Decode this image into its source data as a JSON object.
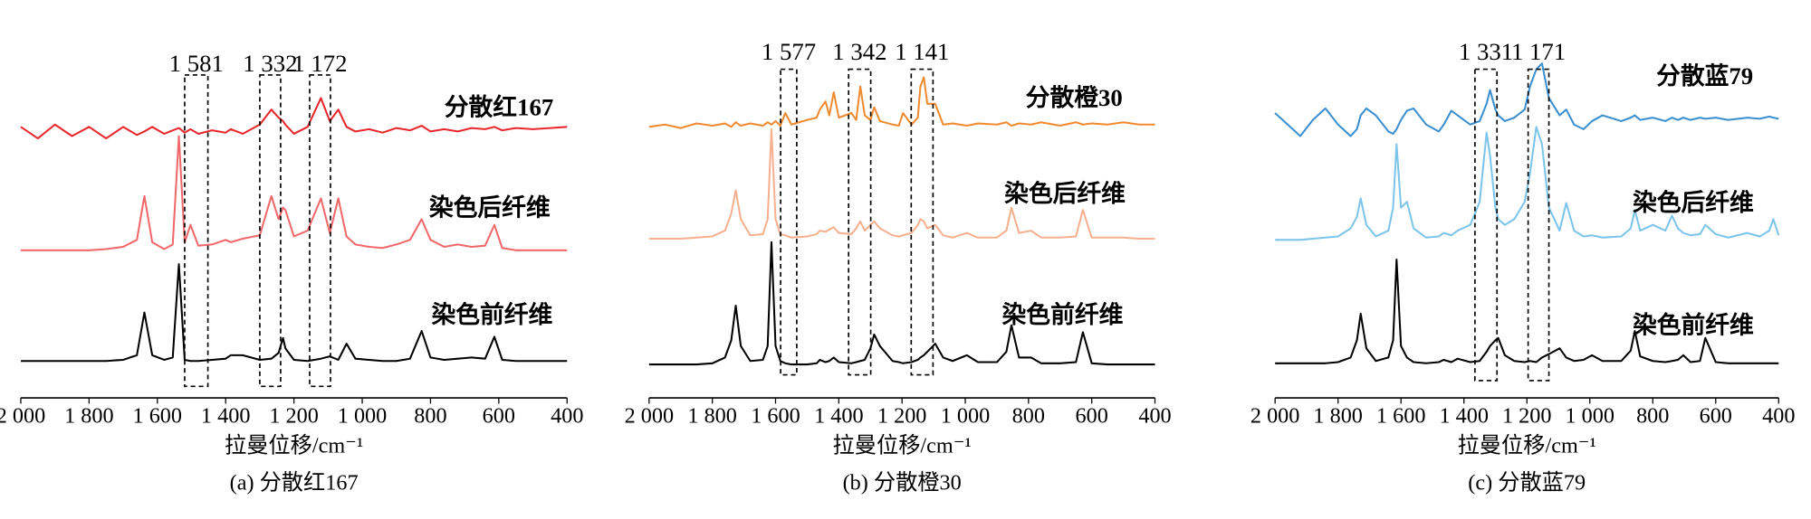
{
  "chart_data": [
    {
      "type": "line",
      "title": "(a) 分散红167",
      "xlabel": "拉曼位移/cm⁻¹",
      "xlim": [
        2000,
        400
      ],
      "ylim": [
        -15,
        250
      ],
      "xticks": [
        {
          "value": 2000,
          "label": "2 000"
        },
        {
          "value": 1800,
          "label": "1 800"
        },
        {
          "value": 1600,
          "label": "1 600"
        },
        {
          "value": 1400,
          "label": "1 400"
        },
        {
          "value": 1200,
          "label": "1 200"
        },
        {
          "value": 1000,
          "label": "1 000"
        },
        800,
        600,
        400
      ],
      "annotations": [
        {
          "label": "1 581",
          "xrange": [
            1520,
            1452
          ]
        },
        {
          "label": "1 332",
          "xrange": [
            1300,
            1239
          ]
        },
        {
          "label": "1 172",
          "xrange": [
            1154,
            1093
          ]
        }
      ],
      "x": [
        2000,
        1950,
        1900,
        1850,
        1800,
        1750,
        1700,
        1660,
        1638,
        1615,
        1580,
        1555,
        1537,
        1520,
        1503,
        1480,
        1440,
        1400,
        1385,
        1350,
        1300,
        1266,
        1245,
        1232,
        1225,
        1200,
        1160,
        1121,
        1095,
        1070,
        1046,
        1020,
        980,
        940,
        900,
        860,
        826,
        800,
        760,
        720,
        680,
        640,
        613,
        590,
        550,
        500,
        450,
        400
      ],
      "series": [
        {
          "name": "分散红167",
          "color": "#e8262b",
          "values": [
            220,
            210,
            222,
            212,
            220,
            210,
            220,
            213,
            216,
            220,
            214,
            217,
            219,
            215,
            218,
            214,
            217,
            215,
            218,
            214,
            222,
            235,
            228,
            225,
            222,
            214,
            220,
            245,
            225,
            235,
            220,
            216,
            218,
            215,
            219,
            217,
            221,
            216,
            218,
            216,
            219,
            218,
            220,
            217,
            219,
            218,
            219,
            220
          ]
        },
        {
          "name": "染色后纤维",
          "color": "#f0686a",
          "values": [
            113,
            113,
            113,
            113,
            113,
            114,
            116,
            122,
            160,
            120,
            114,
            118,
            212,
            120,
            135,
            117,
            118,
            122,
            120,
            123,
            126,
            160,
            140,
            150,
            148,
            125,
            130,
            158,
            128,
            158,
            125,
            118,
            116,
            115,
            118,
            122,
            140,
            122,
            116,
            118,
            116,
            117,
            135,
            115,
            113,
            113,
            113,
            113
          ]
        },
        {
          "name": "染色前纤维",
          "color": "#000000",
          "values": [
            17,
            17,
            17,
            17,
            17,
            17,
            18,
            22,
            59,
            22,
            18,
            20,
            101,
            18,
            17,
            17,
            18,
            19,
            22,
            22,
            18,
            19,
            24,
            37,
            28,
            18,
            17,
            19,
            21,
            18,
            32,
            19,
            18,
            17,
            17,
            19,
            43,
            20,
            18,
            19,
            20,
            19,
            38,
            18,
            17,
            17,
            17,
            17
          ]
        }
      ]
    },
    {
      "type": "line",
      "title": "(b) 分散橙30",
      "xlabel": "拉曼位移/cm⁻¹",
      "xlim": [
        2000,
        400
      ],
      "ylim": [
        -5,
        260
      ],
      "xticks": [
        {
          "value": 2000,
          "label": "2 000"
        },
        {
          "value": 1800,
          "label": "1 800"
        },
        {
          "value": 1600,
          "label": "1 600"
        },
        {
          "value": 1400,
          "label": "1 400"
        },
        {
          "value": 1200,
          "label": "1 200"
        },
        {
          "value": 1000,
          "label": "1 000"
        },
        800,
        600,
        400
      ],
      "annotations": [
        {
          "label": "1 577",
          "xrange": [
            1584,
            1533
          ]
        },
        {
          "label": "1 342",
          "xrange": [
            1369,
            1299
          ]
        },
        {
          "label": "1 141",
          "xrange": [
            1171,
            1102
          ]
        }
      ],
      "x": [
        2000,
        1950,
        1900,
        1850,
        1800,
        1760,
        1740,
        1726,
        1710,
        1680,
        1640,
        1625,
        1613,
        1600,
        1585,
        1569,
        1550,
        1500,
        1470,
        1460,
        1442,
        1430,
        1416,
        1400,
        1360,
        1345,
        1332,
        1318,
        1300,
        1288,
        1270,
        1230,
        1210,
        1197,
        1170,
        1150,
        1142,
        1131,
        1120,
        1095,
        1070,
        1040,
        995,
        960,
        900,
        870,
        854,
        830,
        792,
        760,
        700,
        650,
        628,
        600,
        550,
        500,
        450,
        400
      ],
      "series": [
        {
          "name": "分散橙30",
          "color": "#f08a30",
          "values": [
            230,
            232,
            229,
            233,
            231,
            233,
            230,
            234,
            231,
            233,
            231,
            234,
            232,
            235,
            231,
            242,
            232,
            236,
            238,
            245,
            252,
            240,
            260,
            238,
            242,
            236,
            265,
            240,
            236,
            247,
            235,
            232,
            231,
            242,
            232,
            238,
            265,
            273,
            250,
            250,
            232,
            233,
            231,
            233,
            232,
            234,
            231,
            233,
            232,
            234,
            231,
            234,
            232,
            233,
            232,
            234,
            232,
            232
          ]
        },
        {
          "name": "染色后纤维",
          "color": "#f6b08f",
          "values": [
            133,
            133,
            133,
            134,
            135,
            140,
            155,
            175,
            150,
            136,
            137,
            150,
            228,
            150,
            137,
            136,
            134,
            135,
            137,
            140,
            139,
            141,
            143,
            138,
            137,
            142,
            148,
            140,
            145,
            148,
            142,
            136,
            135,
            136,
            138,
            145,
            150,
            148,
            142,
            145,
            136,
            134,
            138,
            134,
            134,
            140,
            160,
            138,
            140,
            134,
            134,
            135,
            158,
            134,
            134,
            134,
            133,
            133
          ]
        },
        {
          "name": "染色前纤维",
          "color": "#000000",
          "values": [
            24,
            24,
            24,
            24,
            25,
            30,
            45,
            75,
            40,
            27,
            28,
            40,
            130,
            40,
            27,
            25,
            24,
            24,
            25,
            28,
            26,
            27,
            30,
            26,
            25,
            26,
            27,
            28,
            38,
            50,
            40,
            27,
            26,
            25,
            26,
            28,
            30,
            32,
            35,
            42,
            30,
            27,
            32,
            26,
            26,
            35,
            58,
            30,
            30,
            25,
            25,
            26,
            52,
            25,
            24,
            24,
            24,
            24
          ]
        }
      ]
    },
    {
      "type": "line",
      "title": "(c) 分散蓝79",
      "xlabel": "拉曼位移/cm⁻¹",
      "xlim": [
        2000,
        400
      ],
      "ylim": [
        -5,
        260
      ],
      "xticks": [
        {
          "value": 2000,
          "label": "2 000"
        },
        {
          "value": 1800,
          "label": "1 800"
        },
        {
          "value": 1600,
          "label": "1 600"
        },
        {
          "value": 1400,
          "label": "1 400"
        },
        {
          "value": 1200,
          "label": "1 200"
        },
        {
          "value": 1000,
          "label": "1 000"
        },
        800,
        600,
        400
      ],
      "annotations": [
        {
          "label": "1 331",
          "xrange": [
            1365,
            1295
          ]
        },
        {
          "label": "1 171",
          "xrange": [
            1196,
            1130
          ]
        }
      ],
      "x": [
        2000,
        1960,
        1920,
        1880,
        1840,
        1800,
        1760,
        1740,
        1728,
        1710,
        1680,
        1640,
        1625,
        1614,
        1600,
        1581,
        1560,
        1520,
        1480,
        1464,
        1440,
        1420,
        1380,
        1350,
        1328,
        1317,
        1300,
        1291,
        1270,
        1240,
        1207,
        1190,
        1170,
        1152,
        1130,
        1096,
        1075,
        1050,
        1020,
        993,
        960,
        900,
        870,
        857,
        840,
        800,
        760,
        739,
        720,
        703,
        680,
        650,
        633,
        600,
        560,
        500,
        460,
        430,
        417,
        400
      ],
      "series": [
        {
          "name": "分散蓝79",
          "color": "#3a8fd0",
          "values": [
            242,
            232,
            222,
            236,
            246,
            232,
            222,
            228,
            240,
            246,
            240,
            226,
            224,
            228,
            236,
            244,
            246,
            232,
            226,
            232,
            244,
            240,
            232,
            235,
            250,
            262,
            245,
            240,
            235,
            238,
            245,
            265,
            280,
            285,
            255,
            240,
            245,
            232,
            228,
            235,
            240,
            235,
            238,
            240,
            236,
            238,
            235,
            238,
            236,
            238,
            236,
            238,
            237,
            238,
            236,
            238,
            237,
            239,
            238,
            237
          ]
        },
        {
          "name": "染色后纤维",
          "color": "#7cc4ea",
          "values": [
            132,
            132,
            132,
            133,
            134,
            135,
            142,
            152,
            168,
            145,
            135,
            140,
            160,
            215,
            160,
            165,
            142,
            134,
            135,
            138,
            136,
            140,
            145,
            165,
            225,
            205,
            160,
            150,
            145,
            150,
            165,
            190,
            230,
            215,
            160,
            140,
            164,
            140,
            135,
            136,
            134,
            135,
            142,
            158,
            140,
            145,
            140,
            153,
            142,
            138,
            136,
            137,
            145,
            137,
            134,
            138,
            135,
            140,
            150,
            136
          ]
        },
        {
          "name": "染色前纤维",
          "color": "#000000",
          "values": [
            25,
            25,
            25,
            25,
            25,
            26,
            30,
            45,
            68,
            38,
            27,
            30,
            45,
            115,
            40,
            30,
            26,
            25,
            26,
            28,
            26,
            29,
            26,
            27,
            35,
            40,
            45,
            47,
            32,
            27,
            26,
            27,
            26,
            30,
            33,
            38,
            30,
            27,
            28,
            32,
            27,
            27,
            36,
            53,
            31,
            27,
            26,
            27,
            28,
            32,
            26,
            27,
            47,
            26,
            25,
            25,
            25,
            25,
            25,
            25
          ]
        }
      ]
    }
  ]
}
